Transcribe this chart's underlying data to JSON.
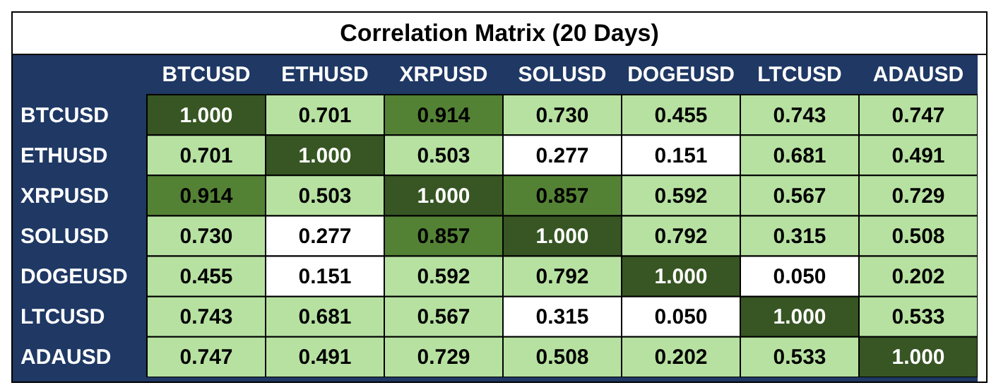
{
  "chart_data": {
    "type": "heatmap",
    "title": "Correlation Matrix (20 Days)",
    "categories": [
      "BTCUSD",
      "ETHUSD",
      "XRPUSD",
      "SOLUSD",
      "DOGEUSD",
      "LTCUSD",
      "ADAUSD"
    ],
    "y_categories": [
      "BTCUSD",
      "ETHUSD",
      "XRPUSD",
      "SOLUSD",
      "DOGEUSD",
      "LTCUSD",
      "ADAUSD"
    ],
    "cells": [
      [
        1.0,
        0.701,
        0.914,
        0.73,
        0.455,
        0.743,
        0.747
      ],
      [
        0.701,
        1.0,
        0.503,
        0.277,
        0.151,
        0.681,
        0.491
      ],
      [
        0.914,
        0.503,
        1.0,
        0.857,
        0.592,
        0.567,
        0.729
      ],
      [
        0.73,
        0.277,
        0.857,
        1.0,
        0.792,
        0.315,
        0.508
      ],
      [
        0.455,
        0.151,
        0.592,
        0.792,
        1.0,
        0.05,
        0.202
      ],
      [
        0.743,
        0.681,
        0.567,
        0.315,
        0.05,
        1.0,
        0.533
      ],
      [
        0.747,
        0.491,
        0.729,
        0.508,
        0.202,
        0.533,
        1.0
      ]
    ],
    "cell_labels": [
      [
        "1.000",
        "0.701",
        "0.914",
        "0.730",
        "0.455",
        "0.743",
        "0.747"
      ],
      [
        "0.701",
        "1.000",
        "0.503",
        "0.277",
        "0.151",
        "0.681",
        "0.491"
      ],
      [
        "0.914",
        "0.503",
        "1.000",
        "0.857",
        "0.592",
        "0.567",
        "0.729"
      ],
      [
        "0.730",
        "0.277",
        "0.857",
        "1.000",
        "0.792",
        "0.315",
        "0.508"
      ],
      [
        "0.455",
        "0.151",
        "0.592",
        "0.792",
        "1.000",
        "0.050",
        "0.202"
      ],
      [
        "0.743",
        "0.681",
        "0.567",
        "0.315",
        "0.050",
        "1.000",
        "0.533"
      ],
      [
        "0.747",
        "0.491",
        "0.729",
        "0.508",
        "0.202",
        "0.533",
        "1.000"
      ]
    ],
    "colors": [
      [
        "#375623",
        "#b7e1a1",
        "#548235",
        "#b7e1a1",
        "#b7e1a1",
        "#b7e1a1",
        "#b7e1a1"
      ],
      [
        "#b7e1a1",
        "#375623",
        "#b7e1a1",
        "#ffffff",
        "#ffffff",
        "#b7e1a1",
        "#b7e1a1"
      ],
      [
        "#548235",
        "#b7e1a1",
        "#375623",
        "#548235",
        "#b7e1a1",
        "#b7e1a1",
        "#b7e1a1"
      ],
      [
        "#b7e1a1",
        "#ffffff",
        "#548235",
        "#375623",
        "#b7e1a1",
        "#b7e1a1",
        "#b7e1a1"
      ],
      [
        "#b7e1a1",
        "#ffffff",
        "#b7e1a1",
        "#b7e1a1",
        "#375623",
        "#ffffff",
        "#b7e1a1"
      ],
      [
        "#b7e1a1",
        "#b7e1a1",
        "#b7e1a1",
        "#ffffff",
        "#ffffff",
        "#375623",
        "#b7e1a1"
      ],
      [
        "#b7e1a1",
        "#b7e1a1",
        "#b7e1a1",
        "#b7e1a1",
        "#b7e1a1",
        "#b7e1a1",
        "#375623"
      ]
    ]
  }
}
